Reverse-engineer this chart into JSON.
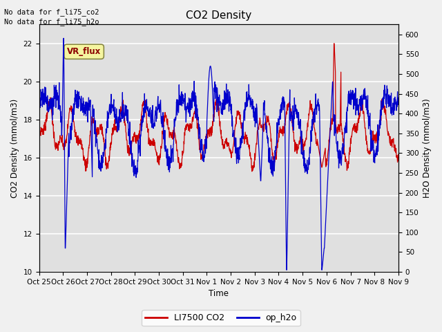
{
  "title": "CO2 Density",
  "xlabel": "Time",
  "ylabel_left": "CO2 Density (mmol/m3)",
  "ylabel_right": "H2O Density (mmol/m3)",
  "text_no_data_1": "No data for f_li75_co2",
  "text_no_data_2": "No data for f_li75_h2o",
  "vr_flux_label": "VR_flux",
  "left_ylim": [
    10,
    23
  ],
  "right_ylim": [
    0,
    625
  ],
  "left_yticks": [
    10,
    12,
    14,
    16,
    18,
    20,
    22
  ],
  "right_yticks": [
    0,
    50,
    100,
    150,
    200,
    250,
    300,
    350,
    400,
    450,
    500,
    550,
    600
  ],
  "xtick_labels": [
    "Oct 25",
    "Oct 26",
    "Oct 27",
    "Oct 28",
    "Oct 29",
    "Oct 30",
    "Oct 31",
    "Nov 1",
    "Nov 2",
    "Nov 3",
    "Nov 4",
    "Nov 5",
    "Nov 6",
    "Nov 7",
    "Nov 8",
    "Nov 9"
  ],
  "legend_entries": [
    "LI7500 CO2",
    "op_h2o"
  ],
  "line_color_co2": "#cc0000",
  "line_color_h2o": "#0000cc",
  "fig_facecolor": "#f0f0f0",
  "plot_facecolor": "#e0e0e0",
  "grid_color": "#ffffff",
  "vr_box_color": "#f5f5a0",
  "vr_text_color": "#8b0000",
  "vr_box_edge": "#888844"
}
